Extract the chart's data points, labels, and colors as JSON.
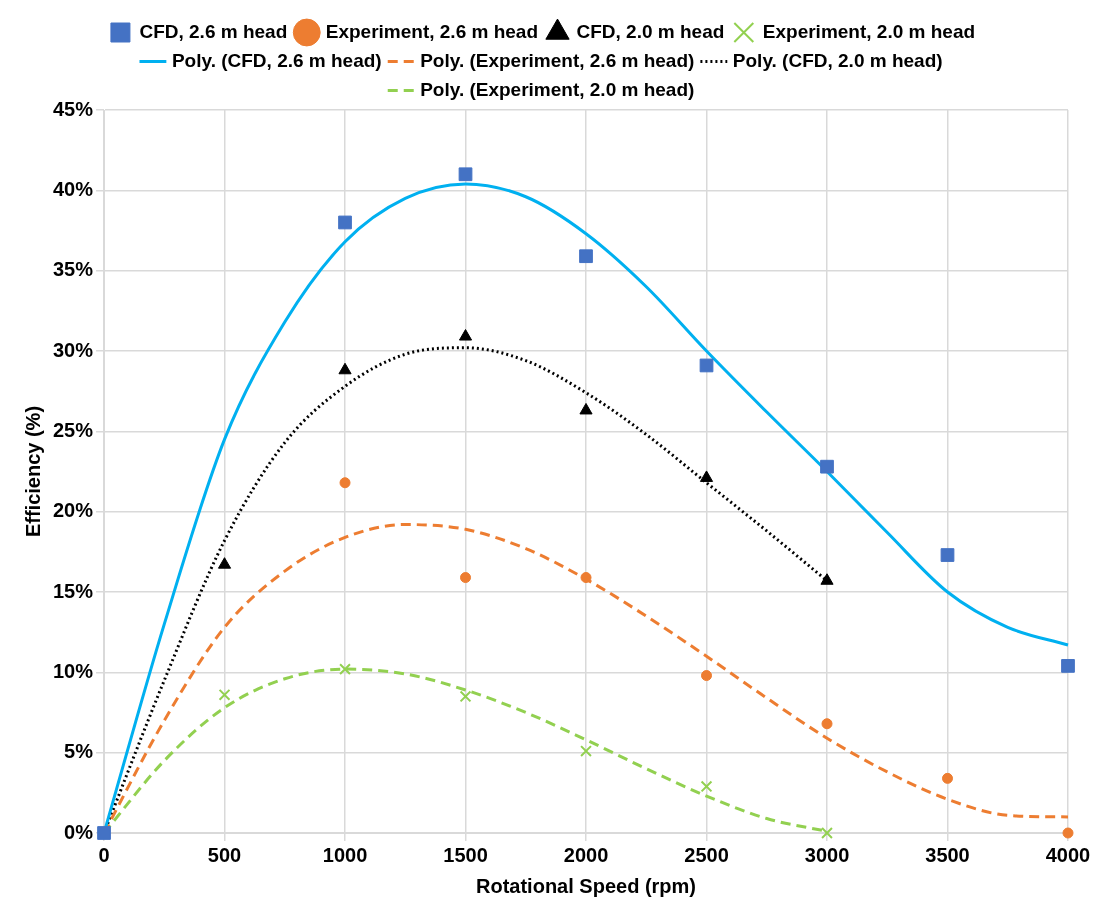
{
  "chart_data": {
    "type": "scatter",
    "xlabel": "Rotational Speed (rpm)",
    "ylabel": "Efficiency (%)",
    "xlim": [
      0,
      4000
    ],
    "xticks": [
      0,
      500,
      1000,
      1500,
      2000,
      2500,
      3000,
      3500,
      4000
    ],
    "ylim": [
      0,
      45
    ],
    "yticks": [
      {
        "value": 0,
        "label": "0%"
      },
      {
        "value": 5,
        "label": "5%"
      },
      {
        "value": 10,
        "label": "10%"
      },
      {
        "value": 15,
        "label": "15%"
      },
      {
        "value": 20,
        "label": "20%"
      },
      {
        "value": 25,
        "label": "25%"
      },
      {
        "value": 30,
        "label": "30%"
      },
      {
        "value": 35,
        "label": "35%"
      },
      {
        "value": 40,
        "label": "40%"
      },
      {
        "value": 45,
        "label": "45%"
      }
    ],
    "grid": true,
    "legend": "top",
    "series": [
      {
        "name": "CFD, 2.6 m head",
        "type": "scatter",
        "marker": "square",
        "color": "#4472c4",
        "x": [
          0,
          1000,
          1500,
          2000,
          2500,
          3000,
          3500,
          4000
        ],
        "values": [
          0,
          38,
          41,
          35.9,
          29.1,
          22.8,
          17.3,
          10.4
        ]
      },
      {
        "name": "Experiment, 2.6 m head",
        "type": "scatter",
        "marker": "circle",
        "color": "#ed7d31",
        "x": [
          1000,
          1500,
          2000,
          2500,
          3000,
          3500,
          4000
        ],
        "values": [
          21.8,
          15.9,
          15.9,
          9.8,
          6.8,
          3.4,
          0
        ]
      },
      {
        "name": "CFD, 2.0 m head",
        "type": "scatter",
        "marker": "triangle",
        "color": "#000000",
        "x": [
          500,
          1000,
          1500,
          2000,
          2500,
          3000
        ],
        "values": [
          16.7,
          28.8,
          30.9,
          26.3,
          22.1,
          15.7
        ]
      },
      {
        "name": "Experiment, 2.0 m head",
        "type": "scatter",
        "marker": "cross",
        "color": "#92d050",
        "x": [
          500,
          1000,
          1500,
          2000,
          2500,
          3000
        ],
        "values": [
          8.6,
          10.2,
          8.5,
          5.1,
          2.9,
          0
        ]
      },
      {
        "name": "Poly. (CFD, 2.6 m head)",
        "type": "line",
        "marker": "none",
        "line_style": "solid",
        "color": "#00b0f0",
        "x": [
          0,
          250,
          500,
          750,
          1000,
          1250,
          1500,
          1750,
          2000,
          2250,
          2500,
          2750,
          3000,
          3250,
          3500,
          3750,
          4000
        ],
        "values": [
          0,
          13,
          24.5,
          31.8,
          36.8,
          39.5,
          40.4,
          39.6,
          37.3,
          34,
          30,
          26.2,
          22.5,
          18.7,
          15,
          12.8,
          11.7
        ]
      },
      {
        "name": "Poly. (Experiment, 2.6 m head)",
        "type": "line",
        "marker": "none",
        "line_style": "dashed",
        "color": "#ed7d31",
        "x": [
          0,
          250,
          500,
          750,
          1000,
          1250,
          1500,
          1750,
          2000,
          2250,
          2500,
          2750,
          3000,
          3250,
          3500,
          3750,
          4000
        ],
        "values": [
          0,
          7,
          12.8,
          16.3,
          18.4,
          19.2,
          18.9,
          17.7,
          15.8,
          13.5,
          11,
          8.4,
          5.9,
          3.8,
          2.1,
          1.1,
          1
        ]
      },
      {
        "name": "Poly. (CFD, 2.0 m head)",
        "type": "line",
        "marker": "none",
        "line_style": "dotted",
        "color": "#000000",
        "x": [
          0,
          250,
          500,
          750,
          1000,
          1250,
          1500,
          1750,
          2000,
          2250,
          2500,
          2750,
          3000
        ],
        "values": [
          0,
          9.5,
          18.2,
          24.3,
          27.8,
          29.8,
          30.2,
          29.4,
          27.4,
          24.8,
          21.8,
          18.8,
          15.7
        ]
      },
      {
        "name": "Poly. (Experiment, 2.0 m head)",
        "type": "line",
        "marker": "none",
        "line_style": "dashed",
        "color": "#92d050",
        "x": [
          0,
          250,
          500,
          750,
          1000,
          1250,
          1500,
          1750,
          2000,
          2250,
          2500,
          2750,
          3000
        ],
        "values": [
          0,
          4.5,
          7.8,
          9.6,
          10.2,
          9.9,
          8.9,
          7.5,
          5.8,
          4,
          2.3,
          0.9,
          0.1
        ]
      }
    ]
  }
}
